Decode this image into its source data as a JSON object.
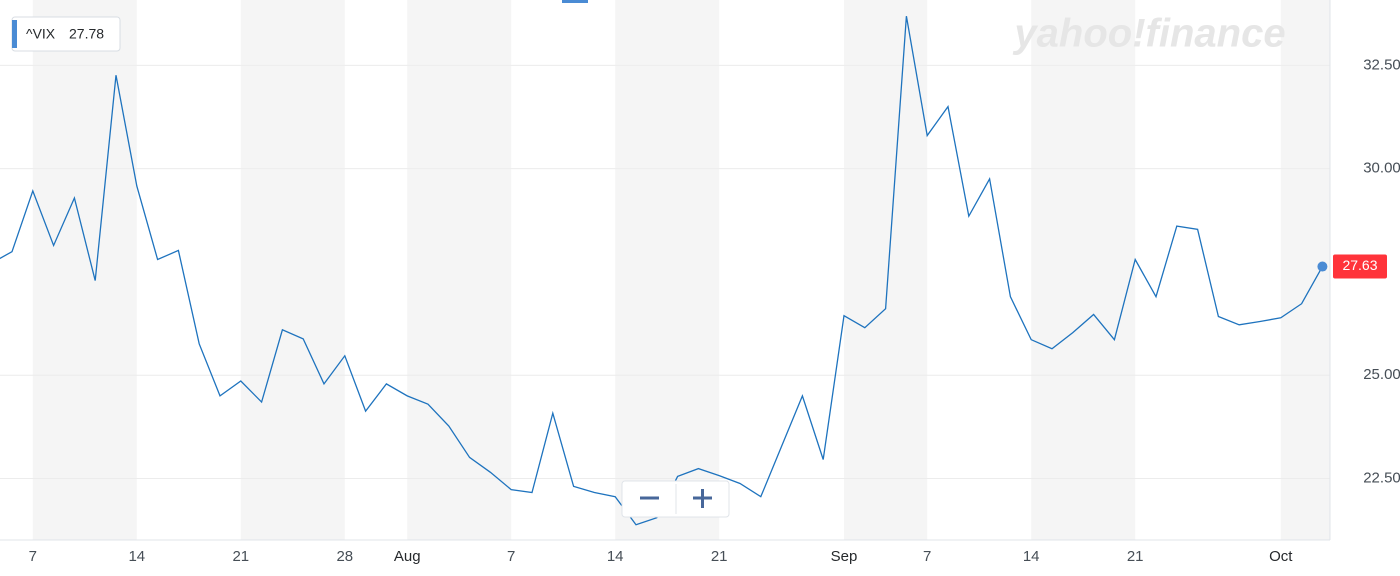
{
  "chart_data": {
    "type": "line",
    "watermark": "yahoo!finance",
    "legend_value": 27.78,
    "categories": [
      null,
      null,
      "7",
      null,
      null,
      null,
      null,
      "14",
      null,
      null,
      null,
      null,
      "21",
      null,
      null,
      null,
      null,
      "28",
      null,
      null,
      "Aug",
      null,
      null,
      null,
      null,
      "7",
      null,
      null,
      null,
      null,
      "14",
      null,
      null,
      null,
      null,
      "21",
      null,
      null,
      null,
      null,
      null,
      "Sep",
      null,
      null,
      null,
      "7",
      null,
      null,
      null,
      null,
      "14",
      null,
      null,
      null,
      null,
      "21",
      null,
      null,
      null,
      null,
      null,
      null,
      "Oct",
      null,
      null
    ],
    "series": [
      {
        "name": "^VIX",
        "color": "#1e73be",
        "values": [
          27.71,
          27.99,
          29.46,
          28.14,
          29.29,
          27.29,
          32.26,
          29.58,
          27.8,
          28.02,
          25.76,
          24.5,
          24.86,
          24.35,
          26.1,
          25.88,
          24.79,
          25.47,
          24.13,
          24.79,
          24.5,
          24.3,
          23.77,
          23.01,
          22.65,
          22.23,
          22.16,
          24.08,
          22.31,
          22.16,
          22.06,
          21.38,
          21.55,
          22.55,
          22.74,
          22.57,
          22.38,
          22.06,
          23.28,
          24.5,
          22.96,
          26.44,
          26.15,
          26.61,
          33.69,
          30.8,
          31.5,
          28.85,
          29.75,
          26.9,
          25.86,
          25.64,
          26.03,
          26.47,
          25.86,
          27.8,
          26.9,
          28.61,
          28.53,
          26.42,
          26.22,
          26.3,
          26.39,
          26.73,
          27.63
        ]
      }
    ],
    "ylim": [
      21.06,
      33.96
    ],
    "yticks": [
      {
        "value": 22.5,
        "label": "22.50"
      },
      {
        "value": 25,
        "label": "25.00"
      },
      {
        "value": 30,
        "label": "30.00"
      },
      {
        "value": 32.5,
        "label": "32.50"
      }
    ],
    "grid": true,
    "last_value_color": "#ff333a"
  }
}
